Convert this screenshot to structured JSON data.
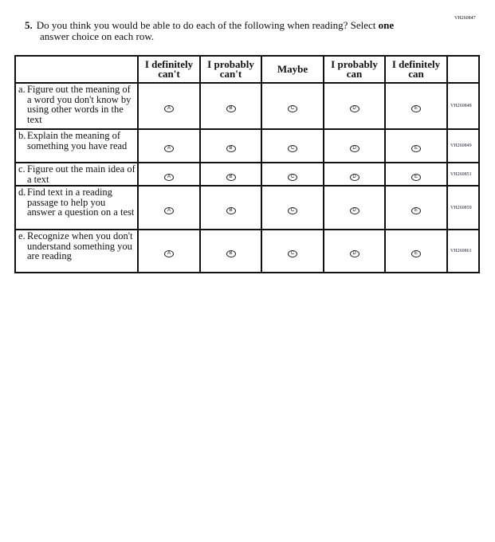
{
  "question": {
    "id": "VH260847",
    "number": "5.",
    "text_before": "Do you think you would be able to do each of the following when reading? Select",
    "emphasis": "one",
    "text_after": "answer choice on each row."
  },
  "columns": [
    "I definitely can't",
    "I probably can't",
    "Maybe",
    "I probably can",
    "I definitely can"
  ],
  "bubble_letters": [
    "A",
    "B",
    "C",
    "D",
    "E"
  ],
  "rows": [
    {
      "letter": "a.",
      "text": "Figure out the meaning of a word you don't know by using other words in the text",
      "id": "VH260848"
    },
    {
      "letter": "b.",
      "text": "Explain the meaning of something you have read",
      "id": "VH260849"
    },
    {
      "letter": "c.",
      "text": "Figure out the main idea of a text",
      "id": "VH260851"
    },
    {
      "letter": "d.",
      "text": "Find text in a reading passage to help you answer a question on a test",
      "id": "VH260859"
    },
    {
      "letter": "e.",
      "text": "Recognize when you don't understand something you are reading",
      "id": "VH260861"
    }
  ]
}
